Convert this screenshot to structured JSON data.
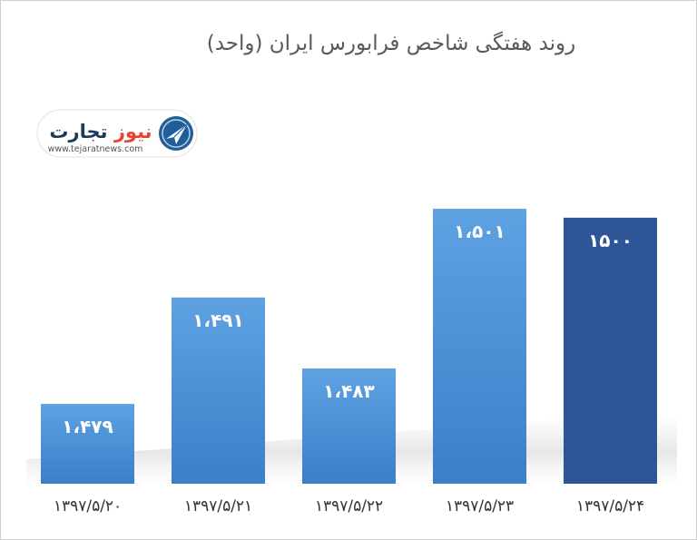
{
  "chart_data": {
    "type": "bar",
    "title": "روند هفتگی شاخص فرابورس ایران (واحد)",
    "categories": [
      "۱۳۹۷/۵/۲۰",
      "۱۳۹۷/۵/۲۱",
      "۱۳۹۷/۵/۲۲",
      "۱۳۹۷/۵/۲۳",
      "۱۳۹۷/۵/۲۴"
    ],
    "values": [
      1479,
      1491,
      1483,
      1501,
      1500
    ],
    "value_labels": [
      "۱،۴۷۹",
      "۱،۴۹۱",
      "۱،۴۸۳",
      "۱،۵۰۱",
      "۱۵۰۰"
    ],
    "ylim": [
      1470,
      1505
    ],
    "grid": false,
    "xlabel": "",
    "ylabel": "",
    "colors": {
      "bar": "#4a8fd3",
      "bar_light": "#5b9ee0",
      "bar_dark": "#3a7dc6",
      "highlight_bar": "#2e5597",
      "highlight_index": 4
    }
  },
  "logo": {
    "name_part1": "تجارت",
    "name_part2": "نیوز",
    "url": "www.tejaratnews.com",
    "icon": "paper-plane-icon",
    "colors": {
      "dark": "#1b3b5a",
      "accent": "#e8432e",
      "icon": "#1f5f99"
    }
  }
}
